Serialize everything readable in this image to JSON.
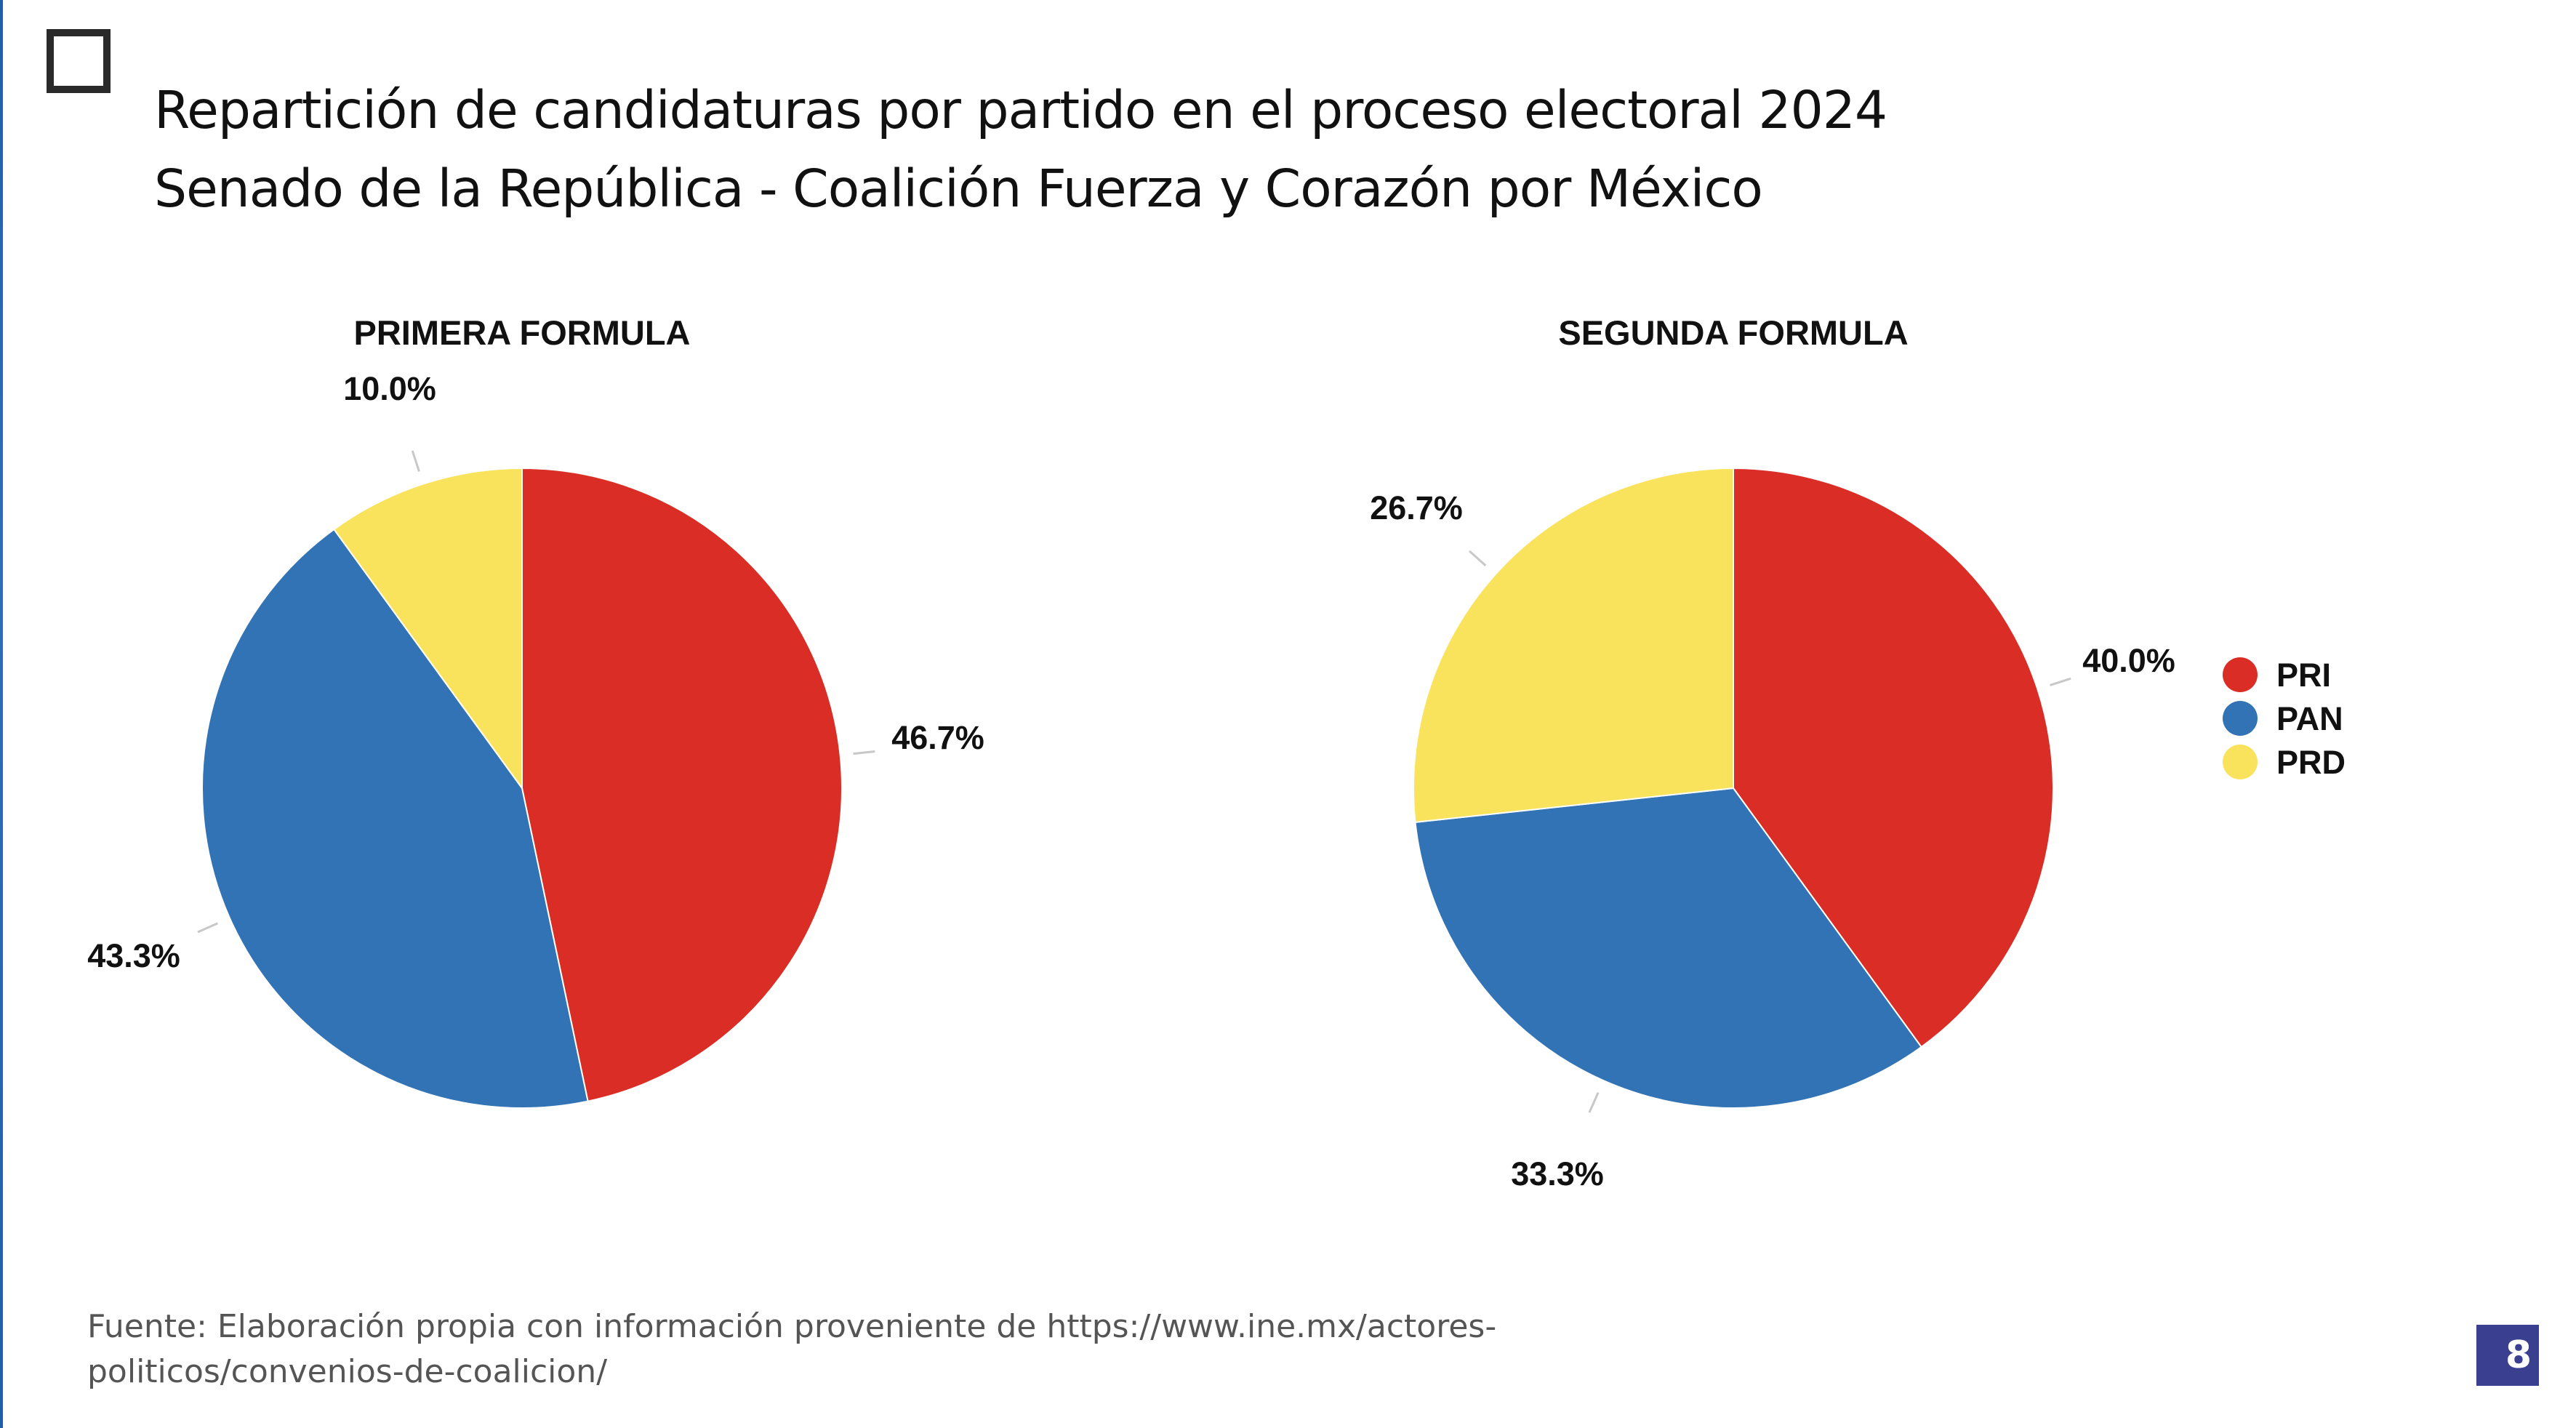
{
  "title": {
    "line1": "Repartición de candidaturas por partido en el proceso electoral 2024",
    "line2": "Senado de la República - Coalición Fuerza y Corazón por México"
  },
  "colors": {
    "PRI": "#d92d26",
    "PAN": "#3173b4",
    "PRD": "#fae35c"
  },
  "chart_data": [
    {
      "type": "pie",
      "title": "PRIMERA FORMULA",
      "categories": [
        "PRI",
        "PAN",
        "PRD"
      ],
      "values": [
        46.7,
        43.3,
        10.0
      ],
      "labels": [
        "46.7%",
        "43.3%",
        "10.0%"
      ]
    },
    {
      "type": "pie",
      "title": "SEGUNDA FORMULA",
      "categories": [
        "PRI",
        "PAN",
        "PRD"
      ],
      "values": [
        40.0,
        33.3,
        26.7
      ],
      "labels": [
        "40.0%",
        "33.3%",
        "26.7%"
      ],
      "legend": {
        "position": "right",
        "entries": [
          "PRI",
          "PAN",
          "PRD"
        ]
      }
    }
  ],
  "source": {
    "line1": "Fuente: Elaboración propia con información proveniente de https://www.ine.mx/actores-",
    "line2": "politicos/convenios-de-coalicion/"
  },
  "page_number": "8"
}
